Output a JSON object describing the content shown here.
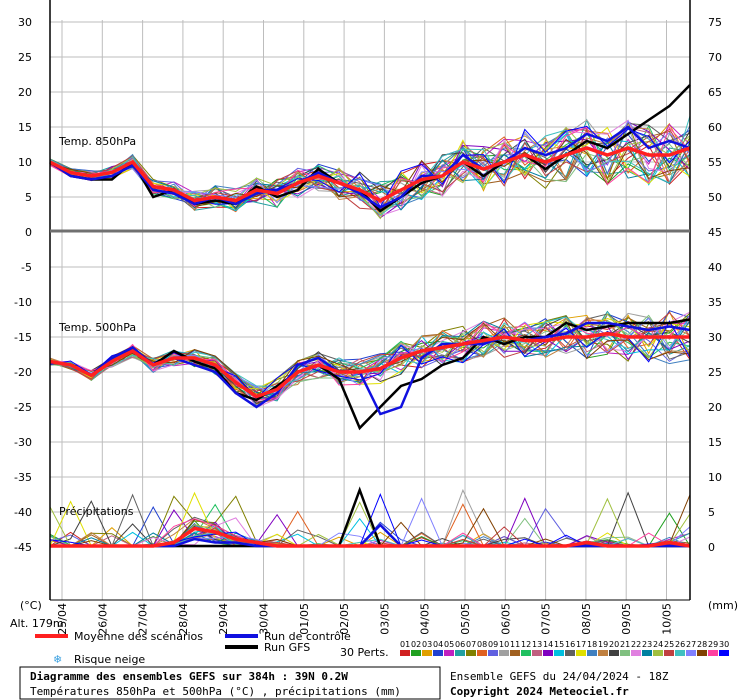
{
  "chart_data": {
    "type": "line",
    "title": "Diagramme des ensembles GEFS sur 384h : 39N 0.2W",
    "subtitle": "Températures 850hPa et 500hPa (°C) , précipitations (mm)",
    "run_info": "Ensemble GEFS du 24/04/2024 - 18Z",
    "copyright": "Copyright 2024 Meteociel.fr",
    "altitude_label": "Alt. 179m",
    "left_axis_unit": "(°C)",
    "right_axis_unit": "(mm)",
    "left_ticks": [
      "30",
      "25",
      "20",
      "15",
      "10",
      "5",
      "0",
      "-5",
      "-10",
      "-15",
      "-20",
      "-25",
      "-30",
      "-35",
      "-40",
      "-45"
    ],
    "right_ticks": [
      "75",
      "70",
      "65",
      "60",
      "55",
      "50",
      "45",
      "40",
      "35",
      "30",
      "25",
      "20",
      "15",
      "10",
      "5",
      "0"
    ],
    "x_labels": [
      "25/04",
      "26/04",
      "27/04",
      "28/04",
      "29/04",
      "30/04",
      "01/05",
      "02/05",
      "03/05",
      "04/05",
      "05/05",
      "06/05",
      "07/05",
      "08/05",
      "09/05",
      "10/05"
    ],
    "panel_labels": {
      "t850": "Temp. 850hPa",
      "t500": "Temp. 500hPa",
      "precip": "Précipitations"
    },
    "legend": {
      "mean": "Moyenne des scénarios",
      "control": "Run de contrôle",
      "gfs": "Run GFS",
      "snow": "Risque neige",
      "perts": "30 Perts.",
      "members": [
        "01",
        "02",
        "03",
        "04",
        "05",
        "06",
        "07",
        "08",
        "09",
        "10",
        "11",
        "12",
        "13",
        "14",
        "15",
        "16",
        "17",
        "18",
        "19",
        "20",
        "21",
        "22",
        "23",
        "24",
        "25",
        "26",
        "27",
        "28",
        "29",
        "30"
      ],
      "member_colors": [
        "#d02020",
        "#20a020",
        "#e0a000",
        "#2040d0",
        "#c020c0",
        "#20a0a0",
        "#808000",
        "#e06020",
        "#6060e0",
        "#a0a0a0",
        "#a06020",
        "#20c060",
        "#c06080",
        "#8000c0",
        "#00c0e0",
        "#606060",
        "#e0e000",
        "#4080c0",
        "#c08040",
        "#404040",
        "#80c080",
        "#e080e0",
        "#0080a0",
        "#a0c040",
        "#c04040",
        "#40c0c0",
        "#8080ff",
        "#804000",
        "#ff40a0",
        "#0000ff"
      ]
    },
    "colors": {
      "mean": "#ff2020",
      "control": "#1010e0",
      "gfs": "#000000"
    },
    "series_t850": {
      "mean": [
        10,
        8.5,
        8,
        8.5,
        10,
        6.5,
        6,
        4.5,
        5,
        4.5,
        6,
        5.5,
        7,
        8,
        7,
        6,
        4.5,
        6,
        7.5,
        8,
        10,
        9,
        10,
        11,
        10,
        11,
        12,
        11,
        12,
        11,
        11,
        12
      ],
      "control": [
        10,
        8,
        7.5,
        8,
        9.5,
        6,
        5.5,
        4,
        5,
        4,
        5.5,
        6,
        7,
        8.5,
        7,
        5.5,
        3.5,
        5,
        8,
        8,
        11,
        9,
        10,
        12,
        11,
        12,
        14,
        13,
        15,
        12,
        13,
        12
      ],
      "gfs": [
        10,
        8,
        7.5,
        7.5,
        10,
        5,
        6,
        4,
        4.5,
        4,
        6.5,
        5,
        6,
        9,
        7,
        6,
        3,
        5,
        7,
        8,
        10,
        8,
        10,
        11,
        9,
        11,
        13,
        12,
        14,
        16,
        18,
        21
      ]
    },
    "series_t500": {
      "mean": [
        -18.5,
        -19,
        -20.5,
        -18.5,
        -17,
        -19,
        -18,
        -18,
        -19,
        -21.5,
        -23.5,
        -22.5,
        -20,
        -19,
        -20,
        -20,
        -19.5,
        -18,
        -17,
        -16.5,
        -16,
        -15.5,
        -15,
        -15.5,
        -15.5,
        -15,
        -15,
        -14.5,
        -15,
        -15,
        -15,
        -15
      ],
      "control": [
        -18.5,
        -19,
        -20.5,
        -18,
        -16.5,
        -19,
        -18,
        -19,
        -20,
        -23,
        -25,
        -23,
        -19,
        -18,
        -20,
        -20,
        -26,
        -25,
        -18,
        -16,
        -16,
        -16,
        -15,
        -15.5,
        -15,
        -14.5,
        -13,
        -13,
        -13.5,
        -14,
        -13.5,
        -14
      ],
      "gfs": [
        -18.5,
        -19,
        -20.5,
        -18,
        -16.5,
        -19,
        -17,
        -18.5,
        -19.5,
        -23,
        -24,
        -22,
        -20,
        -19,
        -21,
        -28,
        -25,
        -22,
        -21,
        -19,
        -18,
        -15,
        -16,
        -15,
        -15,
        -13,
        -14,
        -13.5,
        -13,
        -13,
        -13,
        -12.5
      ]
    },
    "series_precip": {
      "mean": [
        0,
        0,
        0,
        0,
        0,
        0,
        0.5,
        2.5,
        2,
        1,
        0.5,
        0,
        0,
        0,
        0,
        0,
        0,
        0,
        0,
        0,
        0,
        0,
        0,
        0,
        0,
        0,
        0.5,
        0,
        0,
        0,
        0.5,
        0
      ],
      "control": [
        0,
        0,
        0,
        0,
        0,
        0,
        0,
        1,
        0.5,
        0.5,
        0,
        0,
        0,
        0,
        0,
        0,
        3,
        0,
        0,
        0,
        0,
        0,
        0,
        0,
        0,
        0,
        0,
        0,
        0,
        0,
        0,
        0
      ],
      "gfs": [
        0,
        0,
        0,
        0,
        0,
        0,
        0,
        0,
        0,
        0,
        0,
        0,
        0,
        0,
        0,
        8,
        0,
        0,
        0,
        0,
        0,
        0,
        0,
        0,
        0,
        0,
        0,
        0,
        0,
        0,
        0,
        0
      ]
    }
  }
}
